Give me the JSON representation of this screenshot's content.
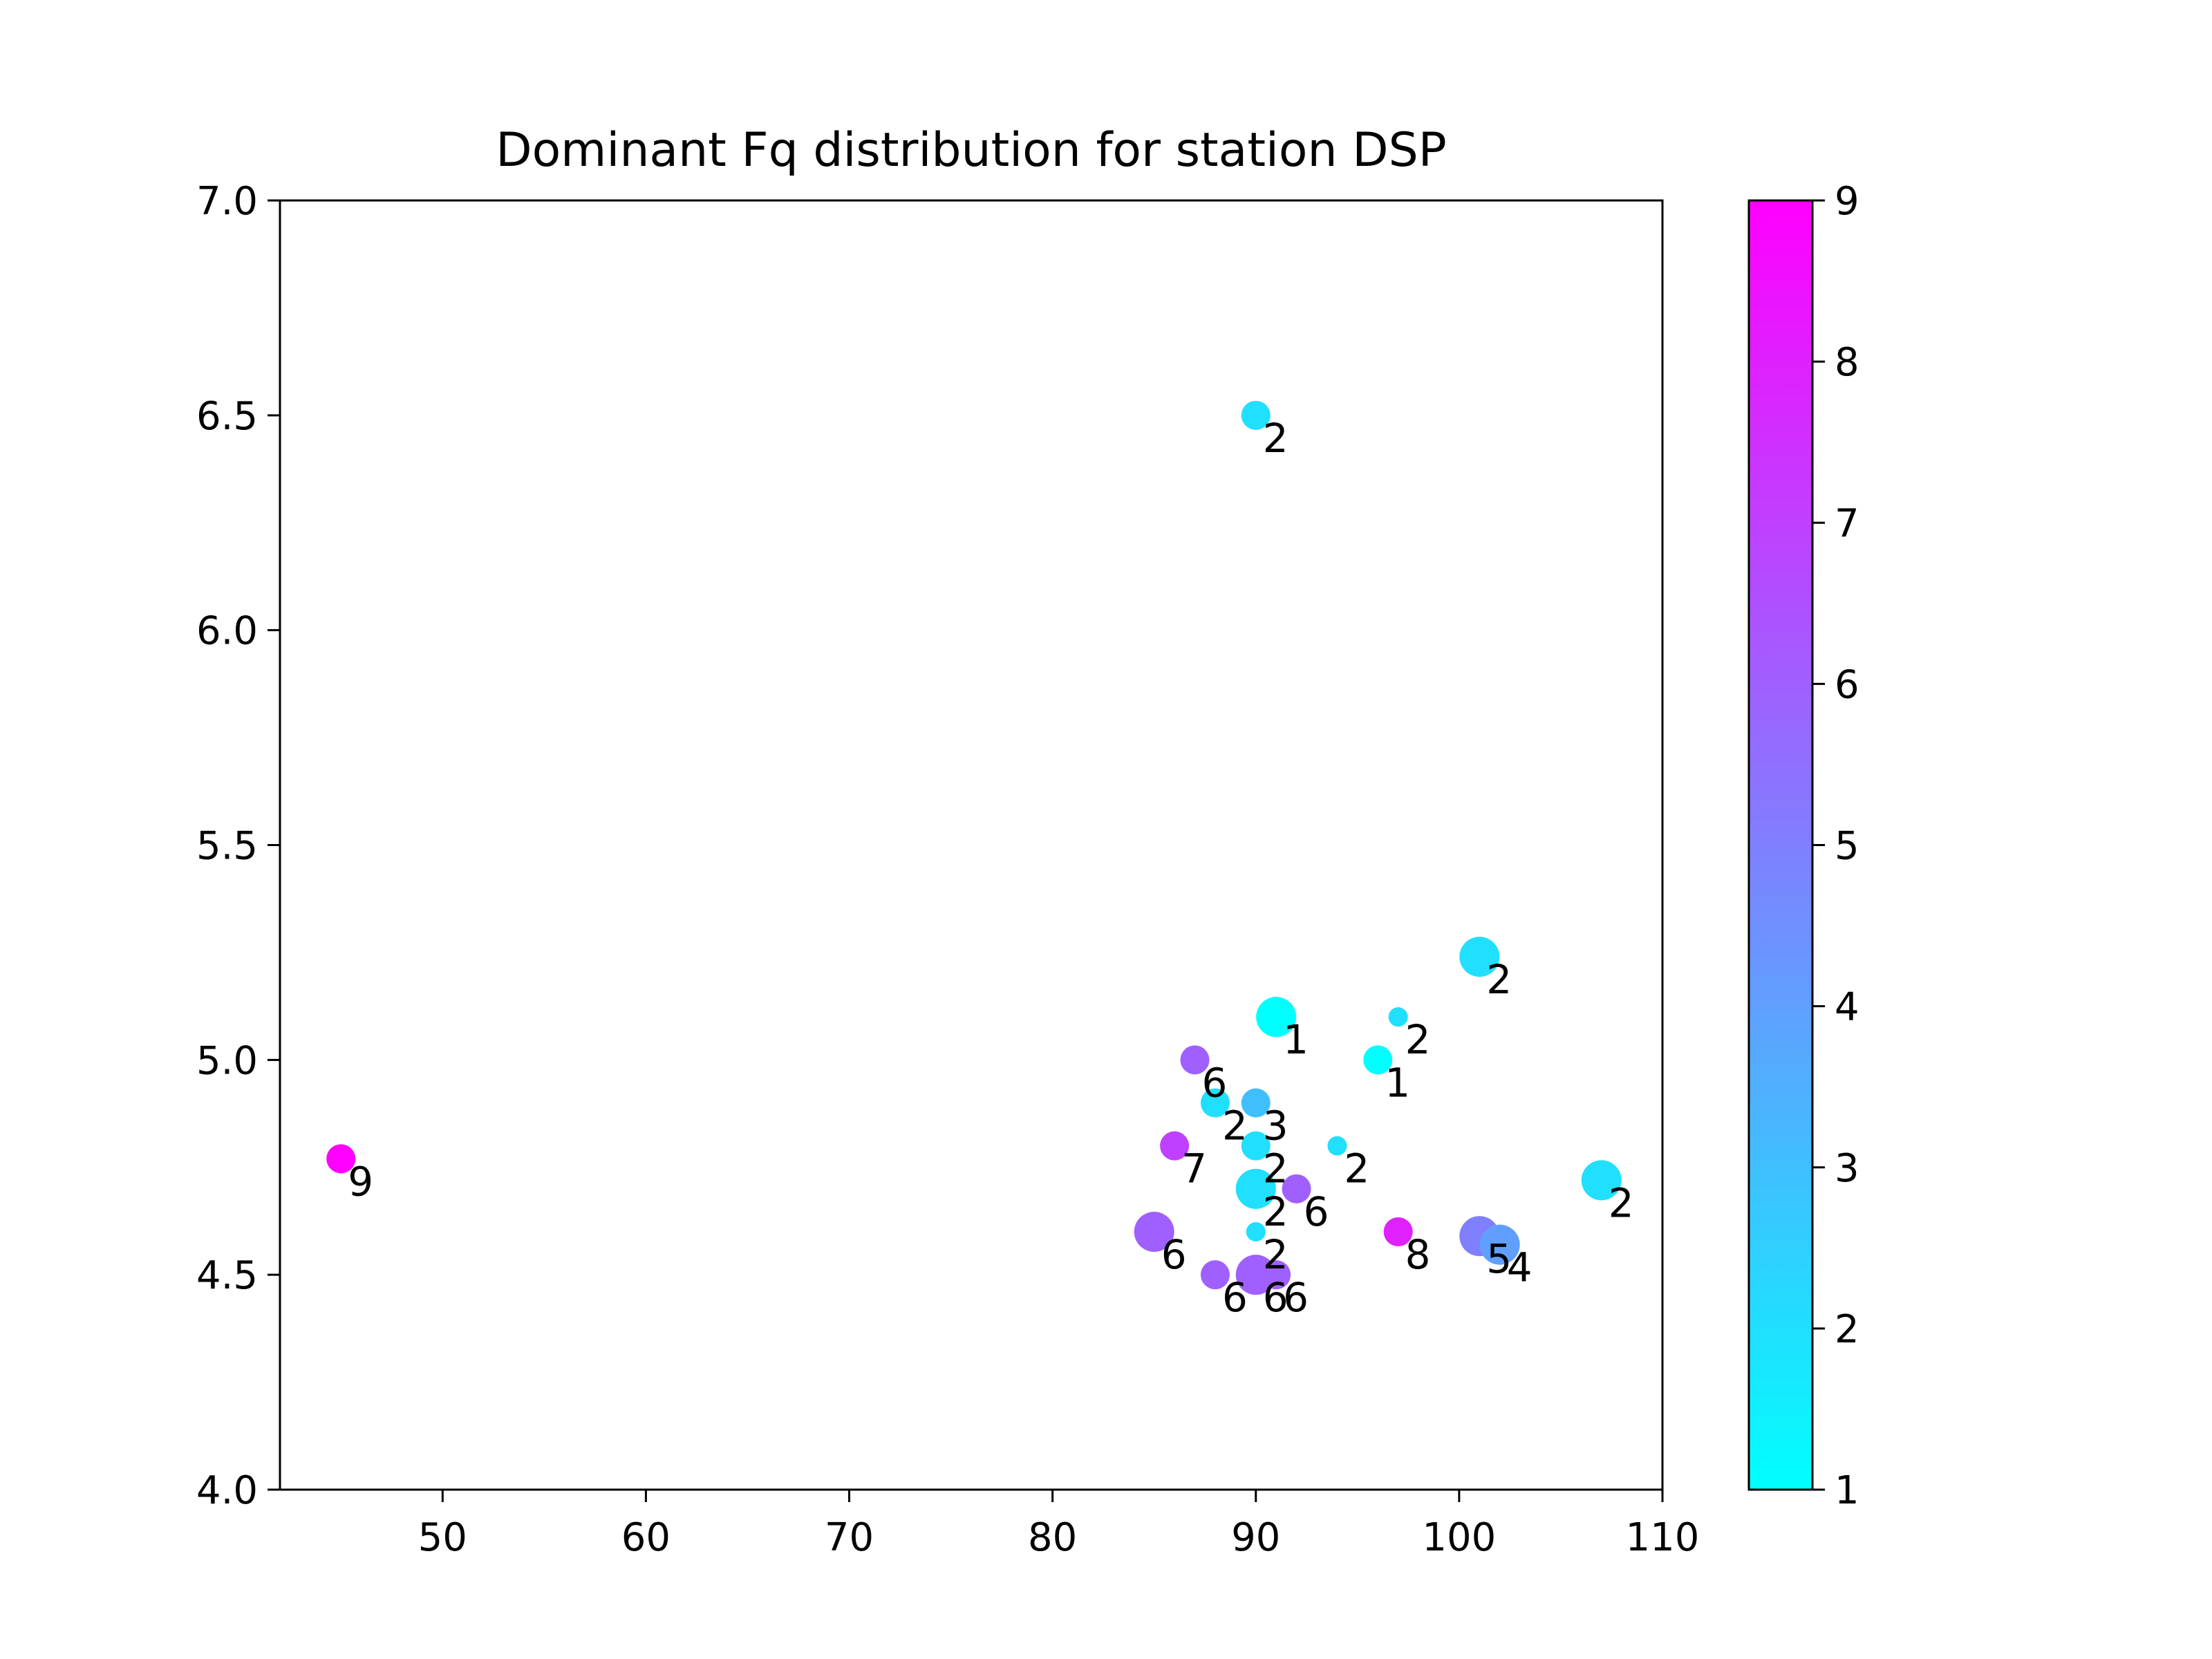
{
  "chart_data": {
    "type": "scatter",
    "title": "Dominant Fq distribution for station DSP",
    "xlabel": "",
    "ylabel": "",
    "xlim": [
      42,
      110
    ],
    "ylim": [
      4.0,
      7.0
    ],
    "xticks": [
      50,
      60,
      70,
      80,
      90,
      100,
      110
    ],
    "yticks": [
      4.0,
      4.5,
      5.0,
      5.5,
      6.0,
      6.5,
      7.0
    ],
    "grid": false,
    "colorbar": {
      "colormap": "cool",
      "range": [
        1,
        9
      ],
      "ticks": [
        1,
        2,
        3,
        4,
        5,
        6,
        7,
        8,
        9
      ],
      "color_low": "#00ffff",
      "color_high": "#ff00ff"
    },
    "points": [
      {
        "x": 90,
        "y": 6.5,
        "value": 2,
        "size": "medium"
      },
      {
        "x": 101,
        "y": 5.24,
        "value": 2,
        "size": "large"
      },
      {
        "x": 91,
        "y": 5.1,
        "value": 1,
        "size": "large"
      },
      {
        "x": 97,
        "y": 5.1,
        "value": 2,
        "size": "small"
      },
      {
        "x": 96,
        "y": 5.0,
        "value": 1,
        "size": "medium"
      },
      {
        "x": 87,
        "y": 5.0,
        "value": 6,
        "size": "medium"
      },
      {
        "x": 88,
        "y": 4.9,
        "value": 2,
        "size": "medium"
      },
      {
        "x": 90,
        "y": 4.9,
        "value": 3,
        "size": "medium"
      },
      {
        "x": 86,
        "y": 4.8,
        "value": 7,
        "size": "medium"
      },
      {
        "x": 90,
        "y": 4.8,
        "value": 2,
        "size": "medium"
      },
      {
        "x": 94,
        "y": 4.8,
        "value": 2,
        "size": "small"
      },
      {
        "x": 45,
        "y": 4.77,
        "value": 9,
        "size": "medium"
      },
      {
        "x": 107,
        "y": 4.72,
        "value": 2,
        "size": "large"
      },
      {
        "x": 90,
        "y": 4.7,
        "value": 2,
        "size": "large"
      },
      {
        "x": 92,
        "y": 4.7,
        "value": 6,
        "size": "medium"
      },
      {
        "x": 90,
        "y": 4.6,
        "value": 2,
        "size": "small"
      },
      {
        "x": 85,
        "y": 4.6,
        "value": 6,
        "size": "large"
      },
      {
        "x": 97,
        "y": 4.6,
        "value": 8,
        "size": "medium"
      },
      {
        "x": 101,
        "y": 4.59,
        "value": 5,
        "size": "large"
      },
      {
        "x": 102,
        "y": 4.57,
        "value": 4,
        "size": "large"
      },
      {
        "x": 88,
        "y": 4.5,
        "value": 6,
        "size": "medium"
      },
      {
        "x": 90,
        "y": 4.5,
        "value": 6,
        "size": "large"
      },
      {
        "x": 91,
        "y": 4.5,
        "value": 6,
        "size": "medium"
      }
    ]
  }
}
